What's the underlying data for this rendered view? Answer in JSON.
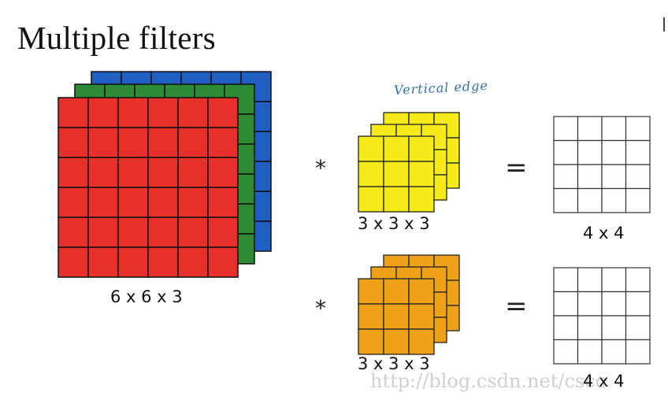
{
  "title": "Multiple filters",
  "handwritten_note": "Vertical edge",
  "input": {
    "size_label": "6 x 6 x 3",
    "grid": 6,
    "channel_colors": [
      "#e8302a",
      "#2e8b35",
      "#1f5fc4"
    ]
  },
  "filters": [
    {
      "size_label": "3 x 3 x 3",
      "grid": 3,
      "color": "#f7ea1a"
    },
    {
      "size_label": "3 x 3 x 3",
      "grid": 3,
      "color": "#f0a11a"
    }
  ],
  "outputs": [
    {
      "size_label": "4 x 4",
      "grid": 4
    },
    {
      "size_label": "4 x 4",
      "grid": 4
    }
  ],
  "operators": {
    "convolve": "*",
    "equals": "="
  },
  "watermark": "http://blog.csdn.net/cscc"
}
